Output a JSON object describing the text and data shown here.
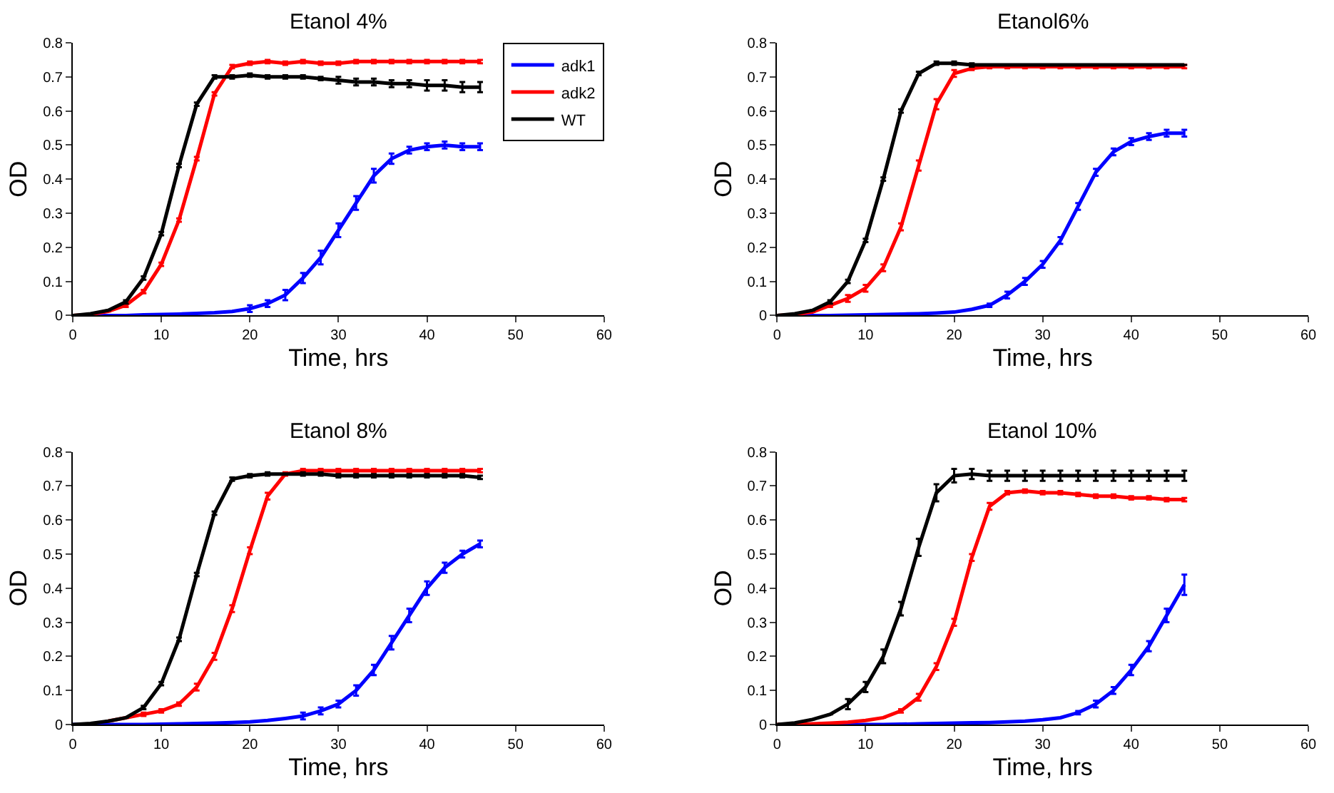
{
  "chart_data": [
    {
      "type": "line",
      "title": "Etanol 4%",
      "xlabel": "Time, hrs",
      "ylabel": "OD",
      "xlim": [
        0,
        60
      ],
      "xticks": [
        0,
        10,
        20,
        30,
        40,
        50,
        60
      ],
      "ylim": [
        0,
        0.8
      ],
      "yticks": [
        0,
        0.1,
        0.2,
        0.3,
        0.4,
        0.5,
        0.6,
        0.7,
        0.8
      ],
      "legend": "top right",
      "x": [
        0,
        2,
        4,
        6,
        8,
        10,
        12,
        14,
        16,
        18,
        20,
        22,
        24,
        26,
        28,
        30,
        32,
        34,
        36,
        38,
        40,
        42,
        44,
        46
      ],
      "series": [
        {
          "name": "adk1",
          "color": "#0000ff",
          "values": [
            0,
            0,
            0,
            0,
            0.002,
            0.003,
            0.004,
            0.006,
            0.008,
            0.012,
            0.02,
            0.035,
            0.06,
            0.11,
            0.17,
            0.25,
            0.33,
            0.41,
            0.46,
            0.485,
            0.495,
            0.5,
            0.495,
            0.495
          ],
          "errors": [
            null,
            null,
            null,
            null,
            null,
            null,
            null,
            null,
            null,
            null,
            0.01,
            0.01,
            0.015,
            0.015,
            0.02,
            0.02,
            0.02,
            0.02,
            0.015,
            0.01,
            0.01,
            0.01,
            0.01,
            0.01
          ]
        },
        {
          "name": "adk2",
          "color": "#ff0000",
          "values": [
            0,
            0.003,
            0.012,
            0.03,
            0.07,
            0.15,
            0.28,
            0.46,
            0.65,
            0.73,
            0.74,
            0.745,
            0.74,
            0.745,
            0.74,
            0.74,
            0.745,
            0.745,
            0.745,
            0.745,
            0.745,
            0.745,
            0.745,
            0.745
          ],
          "errors": [
            null,
            null,
            null,
            0.005,
            0.005,
            0.005,
            0.005,
            0.005,
            0.005,
            0.005,
            0.005,
            0.005,
            0.005,
            0.005,
            0.005,
            0.005,
            0.005,
            0.005,
            0.005,
            0.005,
            0.005,
            0.005,
            0.005,
            0.005
          ]
        },
        {
          "name": "WT",
          "color": "#000000",
          "values": [
            0,
            0.005,
            0.015,
            0.04,
            0.11,
            0.24,
            0.44,
            0.62,
            0.7,
            0.7,
            0.705,
            0.7,
            0.7,
            0.7,
            0.695,
            0.69,
            0.685,
            0.685,
            0.68,
            0.68,
            0.675,
            0.675,
            0.67,
            0.67
          ],
          "errors": [
            null,
            null,
            null,
            0.005,
            0.005,
            0.005,
            0.005,
            0.005,
            0.005,
            0.005,
            0.005,
            0.005,
            0.005,
            0.005,
            0.005,
            0.01,
            0.01,
            0.01,
            0.01,
            0.01,
            0.015,
            0.015,
            0.015,
            0.015
          ]
        }
      ]
    },
    {
      "type": "line",
      "title": "Etanol6%",
      "xlabel": "Time, hrs",
      "ylabel": "OD",
      "xlim": [
        0,
        60
      ],
      "xticks": [
        0,
        10,
        20,
        30,
        40,
        50,
        60
      ],
      "ylim": [
        0,
        0.8
      ],
      "yticks": [
        0,
        0.1,
        0.2,
        0.3,
        0.4,
        0.5,
        0.6,
        0.7,
        0.8
      ],
      "x": [
        0,
        2,
        4,
        6,
        8,
        10,
        12,
        14,
        16,
        18,
        20,
        22,
        24,
        26,
        28,
        30,
        32,
        34,
        36,
        38,
        40,
        42,
        44,
        46
      ],
      "series": [
        {
          "color": "#0000ff",
          "values": [
            0,
            0,
            0,
            0,
            0.001,
            0.002,
            0.003,
            0.004,
            0.005,
            0.007,
            0.01,
            0.018,
            0.03,
            0.06,
            0.1,
            0.15,
            0.22,
            0.32,
            0.42,
            0.48,
            0.51,
            0.525,
            0.535,
            0.535
          ],
          "errors": [
            null,
            null,
            null,
            null,
            null,
            null,
            null,
            null,
            null,
            null,
            null,
            null,
            0.005,
            0.01,
            0.01,
            0.01,
            0.01,
            0.01,
            0.01,
            0.01,
            0.01,
            0.01,
            0.01,
            0.01
          ]
        },
        {
          "color": "#ff0000",
          "values": [
            0,
            0.003,
            0.01,
            0.03,
            0.05,
            0.08,
            0.14,
            0.26,
            0.44,
            0.62,
            0.71,
            0.725,
            0.73,
            0.73,
            0.73,
            0.73,
            0.73,
            0.73,
            0.73,
            0.73,
            0.73,
            0.73,
            0.73,
            0.73
          ],
          "errors": [
            null,
            null,
            null,
            0.005,
            0.01,
            0.01,
            0.01,
            0.01,
            0.015,
            0.015,
            0.01,
            0.005,
            0.005,
            0.005,
            0.005,
            0.005,
            0.005,
            0.005,
            0.005,
            0.005,
            0.005,
            0.005,
            0.005,
            0.005
          ]
        },
        {
          "color": "#000000",
          "values": [
            0,
            0.005,
            0.015,
            0.04,
            0.1,
            0.22,
            0.4,
            0.6,
            0.71,
            0.74,
            0.74,
            0.735,
            0.735,
            0.735,
            0.735,
            0.735,
            0.735,
            0.735,
            0.735,
            0.735,
            0.735,
            0.735,
            0.735,
            0.735
          ],
          "errors": [
            null,
            null,
            null,
            0.005,
            0.005,
            0.005,
            0.005,
            0.005,
            0.005,
            0.005,
            0.005,
            0.005,
            null,
            null,
            null,
            null,
            null,
            null,
            null,
            null,
            null,
            null,
            null,
            null
          ]
        }
      ]
    },
    {
      "type": "line",
      "title": "Etanol 8%",
      "xlabel": "Time, hrs",
      "ylabel": "OD",
      "xlim": [
        0,
        60
      ],
      "xticks": [
        0,
        10,
        20,
        30,
        40,
        50,
        60
      ],
      "ylim": [
        0,
        0.8
      ],
      "yticks": [
        0,
        0.1,
        0.2,
        0.3,
        0.4,
        0.5,
        0.6,
        0.7,
        0.8
      ],
      "x": [
        0,
        2,
        4,
        6,
        8,
        10,
        12,
        14,
        16,
        18,
        20,
        22,
        24,
        26,
        28,
        30,
        32,
        34,
        36,
        38,
        40,
        42,
        44,
        46
      ],
      "series": [
        {
          "color": "#0000ff",
          "values": [
            0,
            0,
            0,
            0,
            0,
            0.001,
            0.002,
            0.003,
            0.004,
            0.006,
            0.008,
            0.012,
            0.018,
            0.025,
            0.04,
            0.06,
            0.1,
            0.16,
            0.24,
            0.32,
            0.4,
            0.46,
            0.5,
            0.53
          ],
          "errors": [
            null,
            null,
            null,
            null,
            null,
            null,
            null,
            null,
            null,
            null,
            null,
            null,
            null,
            0.01,
            0.01,
            0.01,
            0.015,
            0.015,
            0.02,
            0.02,
            0.02,
            0.015,
            0.01,
            0.01
          ]
        },
        {
          "color": "#ff0000",
          "values": [
            null,
            null,
            0.01,
            0.02,
            0.03,
            0.04,
            0.06,
            0.11,
            0.2,
            0.34,
            0.51,
            0.67,
            0.735,
            0.745,
            0.745,
            0.745,
            0.745,
            0.745,
            0.745,
            0.745,
            0.745,
            0.745,
            0.745,
            0.745
          ],
          "errors": [
            null,
            null,
            null,
            null,
            0.005,
            0.005,
            0.005,
            0.01,
            0.01,
            0.01,
            0.01,
            0.01,
            0.005,
            0.005,
            0.005,
            0.005,
            0.005,
            0.005,
            0.005,
            0.005,
            0.005,
            0.005,
            0.005,
            0.005
          ]
        },
        {
          "color": "#000000",
          "values": [
            0,
            0.003,
            0.01,
            0.02,
            0.05,
            0.12,
            0.25,
            0.44,
            0.62,
            0.72,
            0.73,
            0.735,
            0.735,
            0.735,
            0.735,
            0.73,
            0.73,
            0.73,
            0.73,
            0.73,
            0.73,
            0.73,
            0.73,
            0.725
          ],
          "errors": [
            null,
            null,
            null,
            null,
            0.005,
            0.005,
            0.005,
            0.005,
            0.005,
            0.005,
            0.005,
            0.005,
            null,
            0.005,
            0.005,
            0.005,
            0.005,
            0.005,
            0.005,
            0.005,
            0.005,
            0.005,
            0.005,
            0.005
          ]
        }
      ]
    },
    {
      "type": "line",
      "title": "Etanol 10%",
      "xlabel": "Time, hrs",
      "ylabel": "OD",
      "xlim": [
        0,
        60
      ],
      "xticks": [
        0,
        10,
        20,
        30,
        40,
        50,
        60
      ],
      "ylim": [
        0,
        0.8
      ],
      "yticks": [
        0,
        0.1,
        0.2,
        0.3,
        0.4,
        0.5,
        0.6,
        0.7,
        0.8
      ],
      "x": [
        0,
        2,
        4,
        6,
        8,
        10,
        12,
        14,
        16,
        18,
        20,
        22,
        24,
        26,
        28,
        30,
        32,
        34,
        36,
        38,
        40,
        42,
        44,
        46
      ],
      "series": [
        {
          "color": "#0000ff",
          "values": [
            null,
            null,
            null,
            0,
            0,
            0,
            0,
            0.001,
            0.002,
            0.003,
            0.004,
            0.005,
            0.006,
            0.008,
            0.01,
            0.014,
            0.02,
            0.035,
            0.06,
            0.1,
            0.16,
            0.23,
            0.32,
            0.41
          ],
          "errors": [
            null,
            null,
            null,
            null,
            null,
            null,
            null,
            null,
            null,
            null,
            null,
            null,
            null,
            null,
            null,
            null,
            null,
            0.005,
            0.01,
            0.01,
            0.015,
            0.015,
            0.02,
            0.03
          ]
        },
        {
          "color": "#ff0000",
          "values": [
            0,
            0,
            0.002,
            0.004,
            0.007,
            0.012,
            0.02,
            0.04,
            0.08,
            0.17,
            0.3,
            0.49,
            0.64,
            0.68,
            0.685,
            0.68,
            0.68,
            0.675,
            0.67,
            0.67,
            0.665,
            0.665,
            0.66,
            0.66
          ],
          "errors": [
            null,
            null,
            null,
            null,
            null,
            null,
            null,
            0.005,
            0.01,
            0.01,
            0.01,
            0.01,
            0.01,
            0.005,
            0.005,
            0.005,
            0.005,
            0.005,
            0.005,
            0.005,
            0.005,
            0.005,
            0.005,
            0.005
          ]
        },
        {
          "color": "#000000",
          "values": [
            0,
            0.005,
            0.015,
            0.03,
            0.06,
            0.11,
            0.2,
            0.34,
            0.52,
            0.68,
            0.73,
            0.735,
            0.73,
            0.73,
            0.73,
            0.73,
            0.73,
            0.73,
            0.73,
            0.73,
            0.73,
            0.73,
            0.73,
            0.73
          ],
          "errors": [
            null,
            null,
            null,
            null,
            0.015,
            0.015,
            0.02,
            0.02,
            0.025,
            0.025,
            0.02,
            0.015,
            0.015,
            0.015,
            0.015,
            0.015,
            0.015,
            0.015,
            0.015,
            0.015,
            0.015,
            0.015,
            0.015,
            0.015
          ]
        }
      ]
    }
  ]
}
